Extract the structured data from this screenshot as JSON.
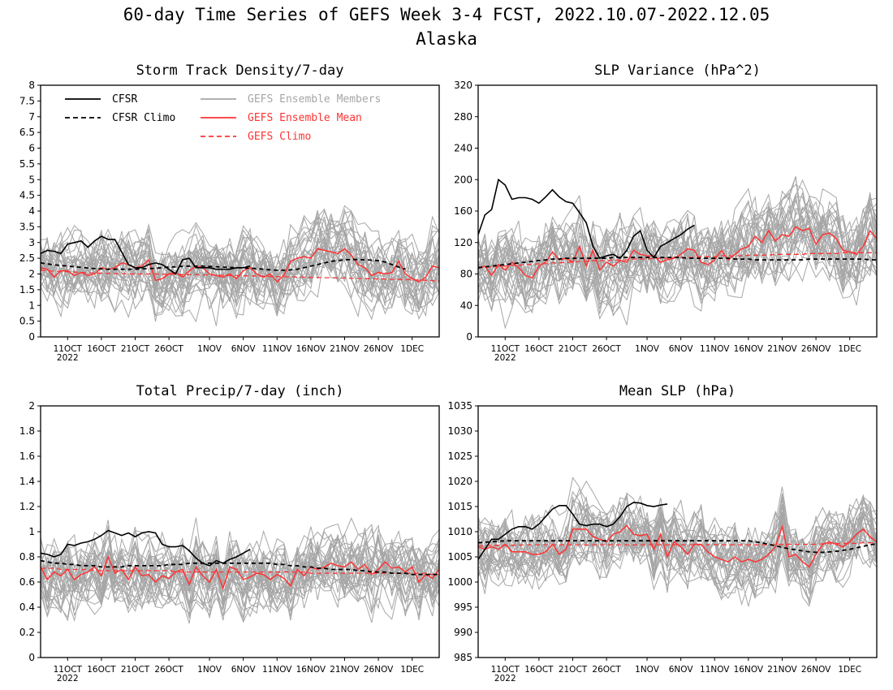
{
  "figure": {
    "title": "60-day Time Series of GEFS Week 3-4 FCST, 2022.10.07-2022.12.05",
    "subtitle": "Alaska"
  },
  "legend": {
    "cfsr": "CFSR",
    "cfsr_climo": "CFSR Climo",
    "members": "GEFS Ensemble Members",
    "mean": "GEFS Ensemble Mean",
    "gefs_climo": "GEFS Climo"
  },
  "colors": {
    "cfsr": "#000000",
    "members": "#a6a6a6",
    "mean": "#ff3333",
    "gefs_climo": "#ff3333"
  },
  "x_ticks": [
    "11OCT",
    "16OCT",
    "21OCT",
    "26OCT",
    "1NOV",
    "6NOV",
    "11NOV",
    "16NOV",
    "21NOV",
    "26NOV",
    "1DEC"
  ],
  "x_year_label": "2022",
  "chart_data": [
    {
      "type": "line",
      "title": "Storm Track Density/7-day",
      "ylim": [
        0,
        8
      ],
      "yticks": [
        "0",
        "0.5",
        "1",
        "1.5",
        "2",
        "2.5",
        "3",
        "3.5",
        "4",
        "4.5",
        "5",
        "5.5",
        "6",
        "6.5",
        "7",
        "7.5",
        "8"
      ],
      "x_range_days": [
        1,
        60
      ],
      "x_tick_days": [
        5,
        10,
        15,
        20,
        26,
        31,
        36,
        41,
        46,
        51,
        56
      ],
      "member_count": 30,
      "member_spread": 1.0,
      "member_center": 2.2,
      "cfsr": [
        2.65,
        2.75,
        2.72,
        2.65,
        2.95,
        3.0,
        3.05,
        2.85,
        3.05,
        3.2,
        3.1,
        3.1,
        2.7,
        2.3,
        2.2,
        2.2,
        2.3,
        2.35,
        2.3,
        2.15,
        2.0,
        2.45,
        2.5,
        2.2,
        2.2,
        2.2,
        2.15,
        2.15,
        2.15,
        2.2,
        2.2,
        2.25
      ],
      "cfsr_climo": [
        2.35,
        2.32,
        2.29,
        2.27,
        2.25,
        2.23,
        2.21,
        2.19,
        2.17,
        2.16,
        2.15,
        2.15,
        2.15,
        2.15,
        2.15,
        2.16,
        2.17,
        2.18,
        2.2,
        2.22,
        2.23,
        2.24,
        2.25,
        2.25,
        2.25,
        2.24,
        2.23,
        2.22,
        2.21,
        2.2,
        2.19,
        2.18,
        2.17,
        2.15,
        2.13,
        2.12,
        2.12,
        2.13,
        2.15,
        2.2,
        2.25,
        2.3,
        2.35,
        2.4,
        2.43,
        2.45,
        2.46,
        2.46,
        2.45,
        2.44,
        2.42,
        2.38,
        2.3,
        2.22,
        2.15
      ],
      "gefs_mean": [
        2.2,
        2.15,
        1.9,
        2.1,
        2.1,
        1.95,
        2.05,
        1.95,
        2.0,
        2.2,
        2.15,
        2.2,
        2.35,
        2.3,
        2.2,
        2.25,
        2.45,
        1.8,
        1.85,
        2.0,
        2.05,
        1.9,
        2.1,
        2.25,
        2.2,
        2.0,
        1.95,
        1.9,
        2.0,
        1.85,
        2.1,
        2.2,
        2.0,
        1.9,
        2.0,
        1.75,
        1.95,
        2.4,
        2.5,
        2.55,
        2.5,
        2.8,
        2.75,
        2.7,
        2.65,
        2.8,
        2.6,
        2.3,
        2.2,
        1.95,
        2.05,
        2.0,
        2.05,
        2.4,
        2.0,
        1.85,
        1.75,
        1.9,
        2.25,
        2.2
      ],
      "gefs_climo": [
        2.12,
        2.1,
        2.09,
        2.08,
        2.07,
        2.06,
        2.05,
        2.04,
        2.03,
        2.02,
        2.02,
        2.01,
        2.01,
        2.0,
        2.0,
        2.0,
        2.0,
        2.0,
        1.99,
        1.99,
        1.99,
        1.98,
        1.98,
        1.98,
        1.97,
        1.97,
        1.96,
        1.96,
        1.95,
        1.95,
        1.94,
        1.94,
        1.93,
        1.93,
        1.92,
        1.92,
        1.91,
        1.91,
        1.9,
        1.9,
        1.89,
        1.89,
        1.88,
        1.88,
        1.87,
        1.87,
        1.86,
        1.86,
        1.85,
        1.85,
        1.84,
        1.84,
        1.83,
        1.83,
        1.82,
        1.82,
        1.81,
        1.8,
        1.79,
        1.78
      ]
    },
    {
      "type": "line",
      "title": "SLP Variance (hPa^2)",
      "ylim": [
        0,
        320
      ],
      "yticks": [
        "0",
        "40",
        "80",
        "120",
        "160",
        "200",
        "240",
        "280",
        "320"
      ],
      "x_range_days": [
        1,
        60
      ],
      "x_tick_days": [
        5,
        10,
        15,
        20,
        26,
        31,
        36,
        41,
        46,
        51,
        56
      ],
      "member_count": 30,
      "member_spread": 45,
      "member_center": 100,
      "cfsr": [
        130,
        155,
        162,
        200,
        193,
        175,
        177,
        177,
        175,
        170,
        178,
        187,
        178,
        172,
        170,
        158,
        145,
        115,
        100,
        103,
        105,
        100,
        110,
        128,
        135,
        110,
        101,
        115,
        120,
        125,
        130,
        137,
        142
      ],
      "cfsr_climo": [
        88,
        89,
        90,
        91,
        92,
        93,
        94,
        95,
        96,
        97,
        98,
        99,
        99,
        100,
        100,
        100,
        100,
        100,
        100,
        100,
        101,
        101,
        101,
        101,
        101,
        101,
        101,
        101,
        101,
        101,
        101,
        100,
        100,
        100,
        100,
        100,
        100,
        100,
        99,
        99,
        99,
        98,
        98,
        98,
        98,
        98,
        98,
        98,
        98,
        99,
        99,
        99,
        99,
        99,
        99,
        99,
        99,
        99,
        98,
        98
      ],
      "gefs_mean": [
        88,
        90,
        78,
        92,
        85,
        95,
        88,
        78,
        75,
        90,
        95,
        108,
        98,
        100,
        95,
        115,
        90,
        110,
        85,
        95,
        90,
        97,
        95,
        110,
        105,
        103,
        103,
        95,
        98,
        100,
        105,
        112,
        110,
        95,
        92,
        98,
        110,
        98,
        105,
        112,
        115,
        128,
        120,
        135,
        122,
        130,
        128,
        140,
        135,
        138,
        118,
        130,
        132,
        125,
        110,
        108,
        105,
        115,
        135,
        125
      ],
      "gefs_climo": [
        88,
        89,
        89,
        90,
        90,
        91,
        91,
        92,
        92,
        93,
        93,
        94,
        94,
        95,
        95,
        96,
        96,
        97,
        97,
        97,
        98,
        98,
        98,
        99,
        99,
        99,
        100,
        100,
        100,
        101,
        101,
        101,
        101,
        102,
        102,
        102,
        103,
        103,
        103,
        103,
        104,
        104,
        104,
        104,
        105,
        105,
        105,
        105,
        105,
        106,
        106,
        106,
        106,
        106,
        107,
        107,
        107,
        107,
        107,
        107
      ]
    },
    {
      "type": "line",
      "title": "Total Precip/7-day (inch)",
      "ylim": [
        0,
        2
      ],
      "yticks": [
        "0",
        "0.2",
        "0.4",
        "0.6",
        "0.8",
        "1",
        "1.2",
        "1.4",
        "1.6",
        "1.8",
        "2"
      ],
      "x_range_days": [
        1,
        60
      ],
      "x_tick_days": [
        5,
        10,
        15,
        20,
        26,
        31,
        36,
        41,
        46,
        51,
        56
      ],
      "member_count": 30,
      "member_spread": 0.25,
      "member_center": 0.68,
      "cfsr": [
        0.83,
        0.82,
        0.8,
        0.82,
        0.9,
        0.89,
        0.91,
        0.92,
        0.94,
        0.97,
        1.01,
        0.99,
        0.97,
        0.99,
        0.96,
        0.99,
        1.0,
        0.99,
        0.9,
        0.88,
        0.88,
        0.89,
        0.85,
        0.79,
        0.75,
        0.73,
        0.77,
        0.75,
        0.78,
        0.8,
        0.83,
        0.86
      ],
      "cfsr_climo": [
        0.77,
        0.76,
        0.75,
        0.75,
        0.74,
        0.74,
        0.73,
        0.73,
        0.73,
        0.72,
        0.72,
        0.72,
        0.72,
        0.73,
        0.73,
        0.73,
        0.73,
        0.73,
        0.73,
        0.74,
        0.74,
        0.74,
        0.75,
        0.75,
        0.75,
        0.75,
        0.75,
        0.75,
        0.75,
        0.75,
        0.75,
        0.75,
        0.75,
        0.75,
        0.75,
        0.74,
        0.74,
        0.73,
        0.73,
        0.72,
        0.72,
        0.71,
        0.71,
        0.7,
        0.7,
        0.7,
        0.7,
        0.69,
        0.69,
        0.68,
        0.68,
        0.68,
        0.67,
        0.67,
        0.67,
        0.66,
        0.66,
        0.66,
        0.66,
        0.66
      ],
      "gefs_mean": [
        0.72,
        0.62,
        0.68,
        0.65,
        0.7,
        0.62,
        0.66,
        0.68,
        0.72,
        0.65,
        0.8,
        0.67,
        0.7,
        0.62,
        0.72,
        0.65,
        0.66,
        0.6,
        0.65,
        0.63,
        0.68,
        0.7,
        0.58,
        0.72,
        0.65,
        0.6,
        0.7,
        0.55,
        0.72,
        0.7,
        0.62,
        0.64,
        0.67,
        0.66,
        0.62,
        0.66,
        0.63,
        0.57,
        0.7,
        0.65,
        0.72,
        0.7,
        0.72,
        0.75,
        0.73,
        0.72,
        0.76,
        0.7,
        0.74,
        0.66,
        0.7,
        0.76,
        0.71,
        0.72,
        0.68,
        0.72,
        0.6,
        0.66,
        0.63,
        0.7
      ],
      "gefs_climo": [
        0.71,
        0.71,
        0.71,
        0.7,
        0.7,
        0.7,
        0.7,
        0.7,
        0.69,
        0.69,
        0.69,
        0.69,
        0.69,
        0.69,
        0.69,
        0.69,
        0.69,
        0.69,
        0.69,
        0.69,
        0.68,
        0.68,
        0.68,
        0.68,
        0.68,
        0.68,
        0.68,
        0.68,
        0.68,
        0.68,
        0.68,
        0.68,
        0.68,
        0.68,
        0.68,
        0.68,
        0.68,
        0.68,
        0.68,
        0.68,
        0.67,
        0.67,
        0.67,
        0.67,
        0.67,
        0.67,
        0.67,
        0.67,
        0.67,
        0.67,
        0.67,
        0.67,
        0.67,
        0.67,
        0.67,
        0.67,
        0.67,
        0.67,
        0.66,
        0.66
      ]
    },
    {
      "type": "line",
      "title": "Mean SLP (hPa)",
      "ylim": [
        985,
        1035
      ],
      "yticks": [
        "985",
        "990",
        "995",
        "1000",
        "1005",
        "1010",
        "1015",
        "1020",
        "1025",
        "1030",
        "1035"
      ],
      "x_range_days": [
        1,
        60
      ],
      "x_tick_days": [
        5,
        10,
        15,
        20,
        26,
        31,
        36,
        41,
        46,
        51,
        56
      ],
      "member_count": 30,
      "member_spread": 6,
      "member_center": 1008,
      "cfsr": [
        1004.5,
        1006.5,
        1008.5,
        1008.5,
        1009.5,
        1010.5,
        1011,
        1011,
        1010.5,
        1011.5,
        1013,
        1014.5,
        1015.2,
        1015.2,
        1013.5,
        1011.5,
        1011.2,
        1011.5,
        1011.5,
        1011,
        1011.5,
        1013,
        1015,
        1015.8,
        1015.7,
        1015.2,
        1015,
        1015.3,
        1015.5
      ],
      "cfsr_climo": [
        1007.8,
        1007.9,
        1008,
        1008.1,
        1008.2,
        1008.2,
        1008.2,
        1008.2,
        1008.2,
        1008.2,
        1008.2,
        1008.2,
        1008.2,
        1008.2,
        1008.2,
        1008.2,
        1008.2,
        1008.2,
        1008.2,
        1008.2,
        1008.2,
        1008.2,
        1008.2,
        1008.2,
        1008.2,
        1008.2,
        1008.2,
        1008.2,
        1008.2,
        1008.2,
        1008.2,
        1008.2,
        1008.2,
        1008.2,
        1008.2,
        1008.2,
        1008.2,
        1008.2,
        1008.2,
        1008.2,
        1008.2,
        1008,
        1007.8,
        1007.5,
        1007.2,
        1006.9,
        1006.6,
        1006.4,
        1006.2,
        1006,
        1005.9,
        1005.9,
        1006,
        1006.1,
        1006.3,
        1006.5,
        1006.8,
        1007.1,
        1007.4,
        1007.6
      ],
      "gefs_mean": [
        1007,
        1006.5,
        1007,
        1006.5,
        1007.5,
        1006,
        1006,
        1006,
        1005.5,
        1005.5,
        1006,
        1007.5,
        1005.5,
        1006.5,
        1010.5,
        1010.5,
        1010.5,
        1009,
        1008.5,
        1008,
        1009.5,
        1010,
        1011.2,
        1009.5,
        1009.2,
        1009.5,
        1006.5,
        1009.5,
        1005,
        1008,
        1007,
        1005.5,
        1007.5,
        1007.5,
        1006,
        1005,
        1004.5,
        1004,
        1005,
        1004,
        1004.5,
        1004,
        1004.5,
        1005.5,
        1007,
        1011,
        1005,
        1005.5,
        1004,
        1003,
        1005.5,
        1007.5,
        1008,
        1007.5,
        1007,
        1008,
        1009.5,
        1010.5,
        1009,
        1008
      ],
      "gefs_climo": [
        1007.2,
        1007.2,
        1007.3,
        1007.3,
        1007.3,
        1007.3,
        1007.3,
        1007.4,
        1007.4,
        1007.4,
        1007.4,
        1007.4,
        1007.4,
        1007.4,
        1007.4,
        1007.4,
        1007.4,
        1007.4,
        1007.4,
        1007.4,
        1007.4,
        1007.4,
        1007.4,
        1007.4,
        1007.4,
        1007.4,
        1007.4,
        1007.4,
        1007.4,
        1007.4,
        1007.4,
        1007.4,
        1007.4,
        1007.4,
        1007.4,
        1007.4,
        1007.4,
        1007.4,
        1007.4,
        1007.4,
        1007.4,
        1007.4,
        1007.4,
        1007.4,
        1007.4,
        1007.5,
        1007.5,
        1007.5,
        1007.5,
        1007.5,
        1007.5,
        1007.6,
        1007.6,
        1007.6,
        1007.7,
        1007.7,
        1007.7,
        1007.8,
        1007.8,
        1007.8
      ]
    }
  ]
}
